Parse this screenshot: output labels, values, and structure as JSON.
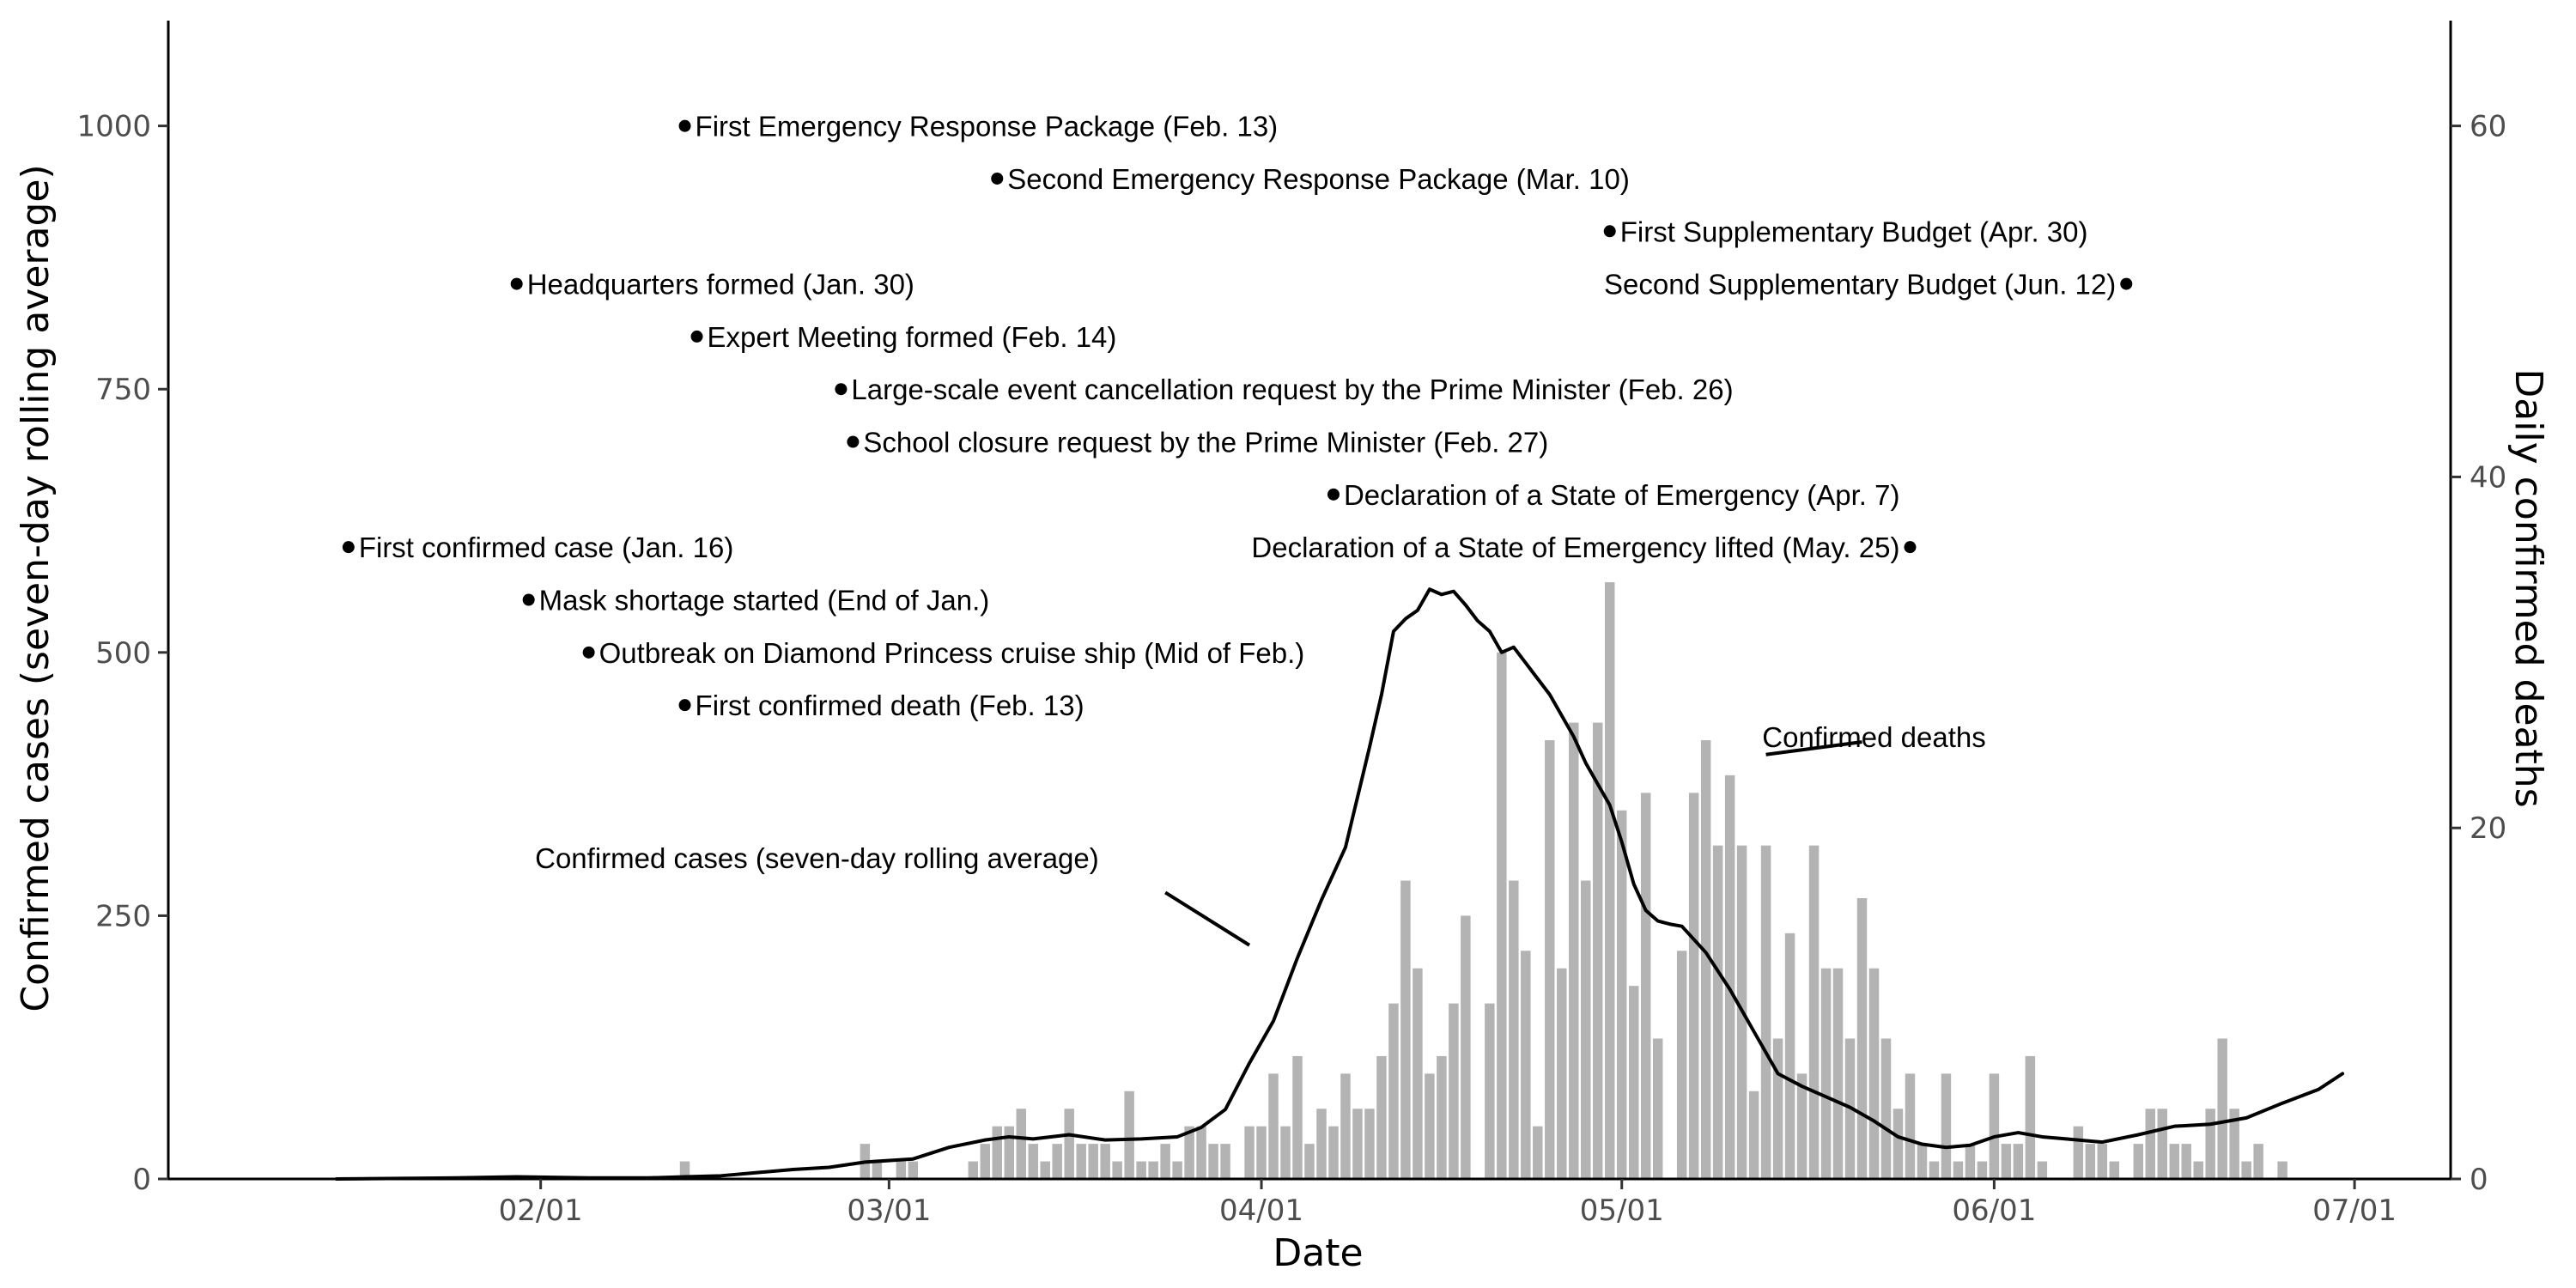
{
  "chart_data": {
    "type": "bar+line",
    "xlabel": "Date",
    "ylabel_left": "Confirmed cases (seven-day rolling average)",
    "ylabel_right": "Daily confirmed deaths",
    "x_range": [
      "2020-01-01",
      "2020-07-09"
    ],
    "ylim_left": [
      0,
      1100
    ],
    "ylim_right": [
      0,
      66
    ],
    "x_ticks": [
      {
        "date": "2020-02-01",
        "label": "02/01"
      },
      {
        "date": "2020-03-01",
        "label": "03/01"
      },
      {
        "date": "2020-04-01",
        "label": "04/01"
      },
      {
        "date": "2020-05-01",
        "label": "05/01"
      },
      {
        "date": "2020-06-01",
        "label": "06/01"
      },
      {
        "date": "2020-07-01",
        "label": "07/01"
      }
    ],
    "y_ticks_left": [
      0,
      250,
      500,
      750,
      1000
    ],
    "y_ticks_right": [
      0,
      20,
      40,
      60
    ],
    "grid": false,
    "colors": {
      "bars": "#b3b3b3",
      "line": "#000000",
      "axis": "#000000",
      "tick_text": "#4d4d4d"
    },
    "series": [
      {
        "name": "Confirmed cases (seven-day rolling average)",
        "type": "line",
        "axis": "left",
        "points": [
          [
            "2020-01-15",
            0
          ],
          [
            "2020-01-25",
            1
          ],
          [
            "2020-01-30",
            2
          ],
          [
            "2020-02-05",
            1
          ],
          [
            "2020-02-10",
            1
          ],
          [
            "2020-02-13",
            2
          ],
          [
            "2020-02-16",
            3
          ],
          [
            "2020-02-19",
            6
          ],
          [
            "2020-02-22",
            9
          ],
          [
            "2020-02-25",
            11
          ],
          [
            "2020-02-28",
            16
          ],
          [
            "2020-03-03",
            19
          ],
          [
            "2020-03-06",
            30
          ],
          [
            "2020-03-09",
            37
          ],
          [
            "2020-03-11",
            40
          ],
          [
            "2020-03-13",
            38
          ],
          [
            "2020-03-16",
            42
          ],
          [
            "2020-03-19",
            37
          ],
          [
            "2020-03-22",
            38
          ],
          [
            "2020-03-25",
            40
          ],
          [
            "2020-03-27",
            49
          ],
          [
            "2020-03-29",
            66
          ],
          [
            "2020-03-31",
            110
          ],
          [
            "2020-04-02",
            150
          ],
          [
            "2020-04-04",
            210
          ],
          [
            "2020-04-06",
            265
          ],
          [
            "2020-04-08",
            315
          ],
          [
            "2020-04-10",
            410
          ],
          [
            "2020-04-11",
            460
          ],
          [
            "2020-04-12",
            520
          ],
          [
            "2020-04-13",
            532
          ],
          [
            "2020-04-14",
            540
          ],
          [
            "2020-04-15",
            560
          ],
          [
            "2020-04-16",
            555
          ],
          [
            "2020-04-17",
            558
          ],
          [
            "2020-04-18",
            545
          ],
          [
            "2020-04-19",
            530
          ],
          [
            "2020-04-20",
            520
          ],
          [
            "2020-04-21",
            500
          ],
          [
            "2020-04-22",
            505
          ],
          [
            "2020-04-23",
            490
          ],
          [
            "2020-04-24",
            475
          ],
          [
            "2020-04-25",
            460
          ],
          [
            "2020-04-26",
            440
          ],
          [
            "2020-04-27",
            420
          ],
          [
            "2020-04-28",
            395
          ],
          [
            "2020-04-29",
            375
          ],
          [
            "2020-04-30",
            355
          ],
          [
            "2020-05-01",
            320
          ],
          [
            "2020-05-02",
            280
          ],
          [
            "2020-05-03",
            255
          ],
          [
            "2020-05-04",
            245
          ],
          [
            "2020-05-05",
            242
          ],
          [
            "2020-05-06",
            240
          ],
          [
            "2020-05-08",
            215
          ],
          [
            "2020-05-10",
            180
          ],
          [
            "2020-05-12",
            140
          ],
          [
            "2020-05-14",
            100
          ],
          [
            "2020-05-16",
            88
          ],
          [
            "2020-05-18",
            78
          ],
          [
            "2020-05-20",
            68
          ],
          [
            "2020-05-22",
            55
          ],
          [
            "2020-05-24",
            40
          ],
          [
            "2020-05-26",
            33
          ],
          [
            "2020-05-28",
            30
          ],
          [
            "2020-05-30",
            32
          ],
          [
            "2020-06-01",
            40
          ],
          [
            "2020-06-03",
            44
          ],
          [
            "2020-06-05",
            40
          ],
          [
            "2020-06-07",
            38
          ],
          [
            "2020-06-10",
            35
          ],
          [
            "2020-06-13",
            42
          ],
          [
            "2020-06-16",
            50
          ],
          [
            "2020-06-19",
            52
          ],
          [
            "2020-06-22",
            58
          ],
          [
            "2020-06-25",
            72
          ],
          [
            "2020-06-28",
            85
          ],
          [
            "2020-06-30",
            100
          ]
        ]
      },
      {
        "name": "Confirmed deaths",
        "type": "bar",
        "axis": "right",
        "points": [
          [
            "2020-02-13",
            1
          ],
          [
            "2020-02-28",
            2
          ],
          [
            "2020-02-29",
            1
          ],
          [
            "2020-03-02",
            1
          ],
          [
            "2020-03-03",
            1
          ],
          [
            "2020-03-08",
            1
          ],
          [
            "2020-03-09",
            2
          ],
          [
            "2020-03-10",
            3
          ],
          [
            "2020-03-11",
            3
          ],
          [
            "2020-03-12",
            4
          ],
          [
            "2020-03-13",
            2
          ],
          [
            "2020-03-14",
            1
          ],
          [
            "2020-03-15",
            2
          ],
          [
            "2020-03-16",
            4
          ],
          [
            "2020-03-17",
            2
          ],
          [
            "2020-03-18",
            2
          ],
          [
            "2020-03-19",
            2
          ],
          [
            "2020-03-20",
            1
          ],
          [
            "2020-03-21",
            5
          ],
          [
            "2020-03-22",
            1
          ],
          [
            "2020-03-23",
            1
          ],
          [
            "2020-03-24",
            2
          ],
          [
            "2020-03-25",
            1
          ],
          [
            "2020-03-26",
            3
          ],
          [
            "2020-03-27",
            3
          ],
          [
            "2020-03-28",
            2
          ],
          [
            "2020-03-29",
            2
          ],
          [
            "2020-03-31",
            3
          ],
          [
            "2020-04-01",
            3
          ],
          [
            "2020-04-02",
            6
          ],
          [
            "2020-04-03",
            3
          ],
          [
            "2020-04-04",
            7
          ],
          [
            "2020-04-05",
            2
          ],
          [
            "2020-04-06",
            4
          ],
          [
            "2020-04-07",
            3
          ],
          [
            "2020-04-08",
            6
          ],
          [
            "2020-04-09",
            4
          ],
          [
            "2020-04-10",
            4
          ],
          [
            "2020-04-11",
            7
          ],
          [
            "2020-04-12",
            10
          ],
          [
            "2020-04-13",
            17
          ],
          [
            "2020-04-14",
            12
          ],
          [
            "2020-04-15",
            6
          ],
          [
            "2020-04-16",
            7
          ],
          [
            "2020-04-17",
            10
          ],
          [
            "2020-04-18",
            15
          ],
          [
            "2020-04-20",
            10
          ],
          [
            "2020-04-21",
            30
          ],
          [
            "2020-04-22",
            17
          ],
          [
            "2020-04-23",
            13
          ],
          [
            "2020-04-24",
            3
          ],
          [
            "2020-04-25",
            25
          ],
          [
            "2020-04-26",
            12
          ],
          [
            "2020-04-27",
            26
          ],
          [
            "2020-04-28",
            17
          ],
          [
            "2020-04-29",
            26
          ],
          [
            "2020-04-30",
            34
          ],
          [
            "2020-05-01",
            21
          ],
          [
            "2020-05-02",
            11
          ],
          [
            "2020-05-03",
            22
          ],
          [
            "2020-05-04",
            8
          ],
          [
            "2020-05-06",
            13
          ],
          [
            "2020-05-07",
            22
          ],
          [
            "2020-05-08",
            25
          ],
          [
            "2020-05-09",
            19
          ],
          [
            "2020-05-10",
            23
          ],
          [
            "2020-05-11",
            19
          ],
          [
            "2020-05-12",
            5
          ],
          [
            "2020-05-13",
            19
          ],
          [
            "2020-05-14",
            8
          ],
          [
            "2020-05-15",
            14
          ],
          [
            "2020-05-16",
            6
          ],
          [
            "2020-05-17",
            19
          ],
          [
            "2020-05-18",
            12
          ],
          [
            "2020-05-19",
            12
          ],
          [
            "2020-05-20",
            8
          ],
          [
            "2020-05-21",
            16
          ],
          [
            "2020-05-22",
            12
          ],
          [
            "2020-05-23",
            8
          ],
          [
            "2020-05-24",
            4
          ],
          [
            "2020-05-25",
            6
          ],
          [
            "2020-05-26",
            2
          ],
          [
            "2020-05-27",
            1
          ],
          [
            "2020-05-28",
            6
          ],
          [
            "2020-05-29",
            1
          ],
          [
            "2020-05-30",
            2
          ],
          [
            "2020-05-31",
            1
          ],
          [
            "2020-06-01",
            6
          ],
          [
            "2020-06-02",
            2
          ],
          [
            "2020-06-03",
            2
          ],
          [
            "2020-06-04",
            7
          ],
          [
            "2020-06-05",
            1
          ],
          [
            "2020-06-08",
            3
          ],
          [
            "2020-06-09",
            2
          ],
          [
            "2020-06-10",
            2
          ],
          [
            "2020-06-11",
            1
          ],
          [
            "2020-06-13",
            2
          ],
          [
            "2020-06-14",
            4
          ],
          [
            "2020-06-15",
            4
          ],
          [
            "2020-06-16",
            2
          ],
          [
            "2020-06-17",
            2
          ],
          [
            "2020-06-18",
            1
          ],
          [
            "2020-06-19",
            4
          ],
          [
            "2020-06-20",
            8
          ],
          [
            "2020-06-21",
            4
          ],
          [
            "2020-06-22",
            1
          ],
          [
            "2020-06-23",
            2
          ],
          [
            "2020-06-25",
            1
          ]
        ]
      }
    ],
    "series_labels": [
      {
        "text": "Confirmed cases (seven-day rolling average)",
        "date": "2020-02-24",
        "y": 305,
        "anchor": "middle",
        "pointer": [
          [
            "2020-03-24",
            272
          ],
          [
            "2020-03-31",
            222
          ]
        ]
      },
      {
        "text": "Confirmed deaths",
        "date": "2020-05-22",
        "y": 420,
        "anchor": "middle",
        "pointer": [
          [
            "2020-05-21",
            415
          ],
          [
            "2020-05-13",
            403
          ]
        ]
      }
    ],
    "annotations": [
      {
        "text": "First Emergency Response Package (Feb. 13)",
        "date": "2020-02-13",
        "y": 1000,
        "side": "right"
      },
      {
        "text": "Second Emergency Response Package (Mar. 10)",
        "date": "2020-03-10",
        "y": 950,
        "side": "right"
      },
      {
        "text": "First Supplementary Budget (Apr. 30)",
        "date": "2020-04-30",
        "y": 900,
        "side": "right"
      },
      {
        "text": "Headquarters formed (Jan. 30)",
        "date": "2020-01-30",
        "y": 850,
        "side": "right"
      },
      {
        "text": "Second Supplementary Budget (Jun. 12)",
        "date": "2020-06-12",
        "y": 850,
        "side": "left"
      },
      {
        "text": "Expert Meeting formed (Feb. 14)",
        "date": "2020-02-14",
        "y": 800,
        "side": "right"
      },
      {
        "text": "Large-scale event cancellation request by the Prime Minister (Feb. 26)",
        "date": "2020-02-26",
        "y": 750,
        "side": "right"
      },
      {
        "text": "School closure request by the Prime Minister (Feb. 27)",
        "date": "2020-02-27",
        "y": 700,
        "side": "right"
      },
      {
        "text": "Declaration of a State of Emergency (Apr. 7)",
        "date": "2020-04-07",
        "y": 650,
        "side": "right"
      },
      {
        "text": "First confirmed case (Jan. 16)",
        "date": "2020-01-16",
        "y": 600,
        "side": "right"
      },
      {
        "text": "Declaration of a State of Emergency lifted (May. 25)",
        "date": "2020-05-25",
        "y": 600,
        "side": "left"
      },
      {
        "text": "Mask shortage started (End of Jan.)",
        "date": "2020-01-31",
        "y": 550,
        "side": "right"
      },
      {
        "text": "Outbreak on Diamond Princess cruise ship (Mid of Feb.)",
        "date": "2020-02-05",
        "y": 500,
        "side": "right"
      },
      {
        "text": "First confirmed death (Feb. 13)",
        "date": "2020-02-13",
        "y": 450,
        "side": "right"
      }
    ]
  }
}
